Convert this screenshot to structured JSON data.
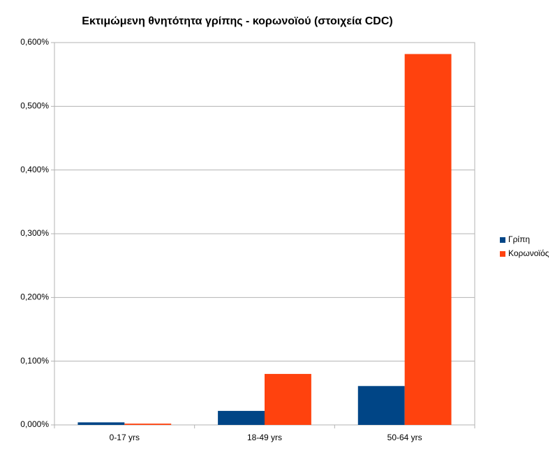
{
  "chart_data": {
    "type": "bar",
    "title": "Εκτιμώμενη θνητότητα γρίπης - κορωνοϊού (στοιχεία CDC)",
    "categories": [
      "0-17 yrs",
      "18-49 yrs",
      "50-64 yrs"
    ],
    "series": [
      {
        "name": "Γρίπη",
        "color": "#004586",
        "values": [
          0.004,
          0.022,
          0.061
        ]
      },
      {
        "name": "Κορωνοϊός",
        "color": "#ff420e",
        "values": [
          0.002,
          0.08,
          0.582
        ]
      }
    ],
    "ylim": [
      0,
      0.6
    ],
    "yticks": [
      {
        "value": 0,
        "label": "0,000%"
      },
      {
        "value": 0.1,
        "label": "0,100%"
      },
      {
        "value": 0.2,
        "label": "0,200%"
      },
      {
        "value": 0.3,
        "label": "0,300%"
      },
      {
        "value": 0.4,
        "label": "0,400%"
      },
      {
        "value": 0.5,
        "label": "0,500%"
      },
      {
        "value": 0.6,
        "label": "0,600%"
      }
    ],
    "grid": true,
    "legend": "right"
  }
}
